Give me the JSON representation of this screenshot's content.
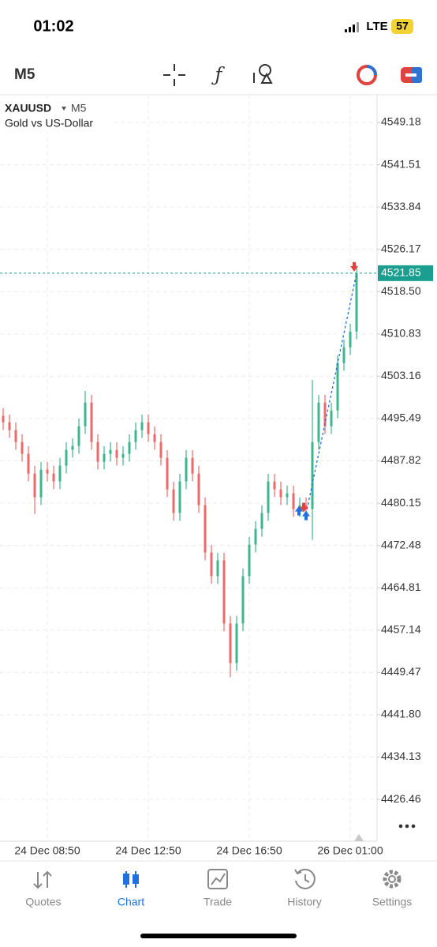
{
  "status_bar": {
    "time": "01:02",
    "network": "LTE",
    "battery": "57"
  },
  "toolbar": {
    "timeframe": "M5"
  },
  "chart_data": {
    "type": "ohlc",
    "title": "XAUUSD",
    "timeframe": "M5",
    "subtitle": "Gold vs US-Dollar",
    "up_color": "#3fb58e",
    "down_color": "#f0696a",
    "grid": true,
    "categories": [
      null,
      null,
      null,
      null,
      null,
      null,
      null,
      "24 Dec 08:50",
      null,
      null,
      null,
      null,
      null,
      null,
      null,
      null,
      null,
      null,
      null,
      null,
      null,
      null,
      null,
      "24 Dec 12:50",
      null,
      null,
      null,
      null,
      null,
      null,
      null,
      null,
      null,
      null,
      null,
      null,
      null,
      null,
      null,
      "24 Dec 16:50",
      null,
      null,
      null,
      null,
      null,
      null,
      null,
      null,
      null,
      null,
      null,
      null,
      null,
      null,
      null,
      "26 Dec 01:00",
      null
    ],
    "open": [
      4496.0,
      4494.82,
      4493.39,
      4491.24,
      4489.09,
      4485.52,
      4481.23,
      4486.23,
      4485.52,
      4484.09,
      4486.95,
      4489.81,
      4490.53,
      4494.1,
      4498.39,
      4491.24,
      4487.66,
      4489.09,
      4489.81,
      4488.38,
      4489.09,
      4491.24,
      4493.39,
      4494.82,
      4492.67,
      4491.24,
      4488.38,
      4482.66,
      4478.37,
      4484.09,
      4488.38,
      4485.52,
      4479.8,
      4471.21,
      4466.92,
      4469.78,
      4458.34,
      4451.18,
      4458.34,
      4466.92,
      4472.64,
      4475.5,
      4478.37,
      4484.09,
      4482.66,
      4481.23,
      4481.94,
      4479.08,
      4479.8,
      4479.08,
      4491.24,
      4498.39,
      4494.1,
      4496.96,
      4505.55,
      4508.41,
      4511.27
    ],
    "high": [
      4497.4,
      4496.22,
      4494.79,
      4492.64,
      4490.49,
      4486.92,
      4487.63,
      4487.63,
      4486.92,
      4488.35,
      4491.21,
      4491.93,
      4495.5,
      4500.5,
      4499.79,
      4492.64,
      4490.49,
      4491.21,
      4491.21,
      4490.49,
      4492.64,
      4494.79,
      4496.22,
      4496.22,
      4494.07,
      4492.64,
      4489.78,
      4484.06,
      4485.49,
      4489.78,
      4489.78,
      4486.92,
      4481.2,
      4472.61,
      4471.18,
      4471.18,
      4459.74,
      4459.74,
      4468.32,
      4474.04,
      4476.9,
      4479.77,
      4485.49,
      4485.49,
      4484.06,
      4483.34,
      4483.34,
      4481.2,
      4481.2,
      4502.5,
      4499.79,
      4499.79,
      4498.36,
      4506.95,
      4509.81,
      4512.67,
      4523.25
    ],
    "low": [
      4493.42,
      4491.99,
      4489.84,
      4487.69,
      4484.12,
      4478.2,
      4479.83,
      4484.12,
      4482.69,
      4482.69,
      4485.55,
      4488.41,
      4489.13,
      4492.7,
      4489.84,
      4486.26,
      4486.26,
      4487.69,
      4486.98,
      4486.98,
      4487.69,
      4489.84,
      4491.99,
      4491.27,
      4489.84,
      4486.98,
      4481.26,
      4476.97,
      4476.97,
      4482.69,
      4484.12,
      4478.4,
      4469.81,
      4465.52,
      4465.52,
      4456.94,
      4448.6,
      4449.78,
      4456.94,
      4465.52,
      4471.24,
      4474.1,
      4476.97,
      4481.26,
      4479.83,
      4479.83,
      4477.68,
      4477.68,
      4477.68,
      4473.5,
      4489.84,
      4492.7,
      4492.7,
      4495.56,
      4504.15,
      4507.01,
      4509.87
    ],
    "close": [
      4494.82,
      4493.39,
      4491.24,
      4489.09,
      4485.52,
      4481.23,
      4486.23,
      4485.52,
      4484.09,
      4486.95,
      4489.81,
      4490.53,
      4494.1,
      4498.39,
      4491.24,
      4487.66,
      4489.09,
      4489.81,
      4488.38,
      4489.09,
      4491.24,
      4493.39,
      4494.82,
      4492.67,
      4491.24,
      4488.38,
      4482.66,
      4478.37,
      4484.09,
      4488.38,
      4485.52,
      4479.8,
      4471.21,
      4466.92,
      4469.78,
      4458.34,
      4451.18,
      4458.34,
      4466.92,
      4472.64,
      4475.5,
      4478.37,
      4484.09,
      4482.66,
      4481.23,
      4481.94,
      4479.08,
      4479.8,
      4479.08,
      4491.24,
      4498.39,
      4494.1,
      4496.96,
      4505.55,
      4508.41,
      4511.27,
      4521.85
    ],
    "current_price": 4521.85,
    "current_price_color": "#1a9e8f",
    "ylim": [
      4418.88,
      4554.19
    ],
    "yticks": [
      4549.18,
      4541.51,
      4533.84,
      4526.17,
      {
        "value": 4518.5,
        "label": "4518.50"
      },
      4510.83,
      4503.16,
      4495.49,
      4487.82,
      4480.15,
      4472.48,
      4464.81,
      4457.14,
      4449.47,
      {
        "value": 4441.8,
        "label": "4441.80"
      },
      4434.13,
      4426.46
    ]
  },
  "tab_bar": {
    "tabs": [
      "Quotes",
      "Chart",
      "Trade",
      "History",
      "Settings"
    ],
    "active": 1
  }
}
